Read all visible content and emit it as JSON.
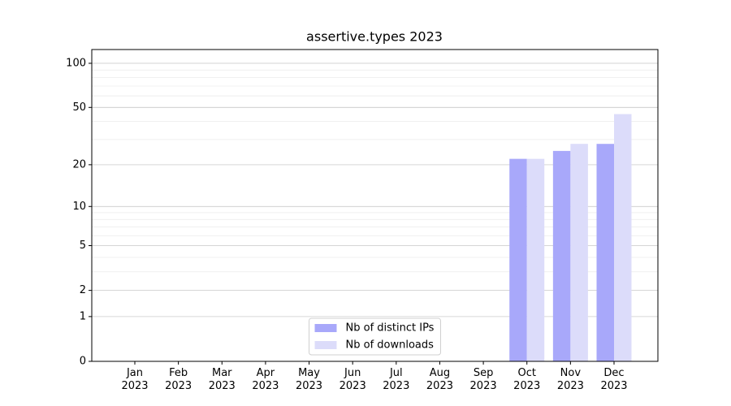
{
  "chart_data": {
    "type": "bar",
    "title": "assertive.types 2023",
    "categories": [
      "Jan\n2023",
      "Feb\n2023",
      "Mar\n2023",
      "Apr\n2023",
      "May\n2023",
      "Jun\n2023",
      "Jul\n2023",
      "Aug\n2023",
      "Sep\n2023",
      "Oct\n2023",
      "Nov\n2023",
      "Dec\n2023"
    ],
    "series": [
      {
        "name": "Nb of distinct IPs",
        "color": "#a8a8fa",
        "values": [
          0,
          0,
          0,
          0,
          0,
          0,
          0,
          0,
          0,
          22,
          25,
          28
        ]
      },
      {
        "name": "Nb of downloads",
        "color": "#dcdcfa",
        "values": [
          0,
          0,
          0,
          0,
          0,
          0,
          0,
          0,
          0,
          22,
          28,
          45
        ]
      }
    ],
    "yscale": "log1p",
    "ylim": [
      0,
      124
    ],
    "yticks": [
      0,
      1,
      2,
      5,
      10,
      20,
      50,
      100
    ],
    "grid": true,
    "legend": "lower center"
  }
}
